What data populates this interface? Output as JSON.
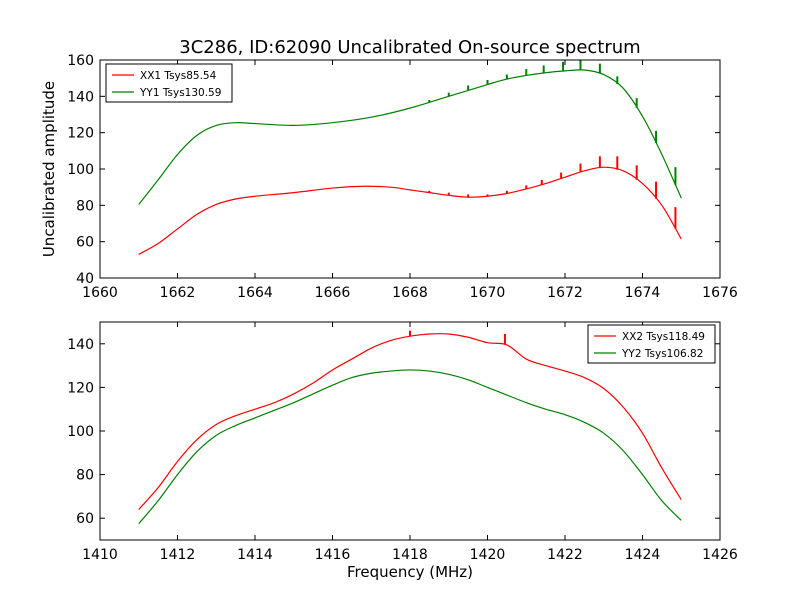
{
  "figure_title": "3C286, ID:62090 Uncalibrated On-source spectrum",
  "colors": {
    "red": "#ff0000",
    "green": "#008000"
  },
  "chart_data": [
    {
      "type": "line",
      "title": "3C286, ID:62090 Uncalibrated On-source spectrum",
      "xlabel": "",
      "ylabel": "Uncalibrated amplitude",
      "xlim": [
        1660,
        1676
      ],
      "ylim": [
        40,
        160
      ],
      "xticks": [
        1660,
        1662,
        1664,
        1666,
        1668,
        1670,
        1672,
        1674,
        1676
      ],
      "yticks": [
        40,
        60,
        80,
        100,
        120,
        140,
        160
      ],
      "grid": false,
      "legend_position": "top-left",
      "series": [
        {
          "name": "XX1 Tsys85.54",
          "color": "#ff0000",
          "x": [
            1661.0,
            1661.5,
            1662.0,
            1662.5,
            1663.0,
            1663.5,
            1664.0,
            1665.0,
            1666.0,
            1666.8,
            1667.5,
            1668.0,
            1668.5,
            1669.0,
            1669.5,
            1670.0,
            1670.5,
            1671.0,
            1671.5,
            1672.0,
            1672.5,
            1673.0,
            1673.5,
            1674.0,
            1674.5,
            1675.0
          ],
          "y": [
            53,
            59,
            67,
            75,
            80.5,
            83.5,
            85,
            87,
            89.5,
            90.5,
            90,
            88.5,
            87,
            85.5,
            84.5,
            85,
            86.5,
            89,
            92,
            95.5,
            99,
            101,
            99,
            92,
            80,
            61.5
          ],
          "spikes": [
            {
              "x": 1668.5,
              "y": 88
            },
            {
              "x": 1669.0,
              "y": 87
            },
            {
              "x": 1669.5,
              "y": 86
            },
            {
              "x": 1670.0,
              "y": 86
            },
            {
              "x": 1670.5,
              "y": 88
            },
            {
              "x": 1671.0,
              "y": 91
            },
            {
              "x": 1671.4,
              "y": 94
            },
            {
              "x": 1671.9,
              "y": 98
            },
            {
              "x": 1672.4,
              "y": 103
            },
            {
              "x": 1672.9,
              "y": 107
            },
            {
              "x": 1673.35,
              "y": 107
            },
            {
              "x": 1673.85,
              "y": 102
            },
            {
              "x": 1674.35,
              "y": 93
            },
            {
              "x": 1674.85,
              "y": 79
            }
          ]
        },
        {
          "name": "YY1 Tsys130.59",
          "color": "#008000",
          "x": [
            1661.0,
            1661.5,
            1662.0,
            1662.5,
            1663.0,
            1663.5,
            1664.0,
            1665.0,
            1666.0,
            1667.0,
            1668.0,
            1669.0,
            1670.0,
            1670.5,
            1671.0,
            1671.5,
            1672.0,
            1672.5,
            1673.0,
            1673.5,
            1674.0,
            1674.5,
            1675.0
          ],
          "y": [
            80.5,
            94,
            108,
            118.5,
            124,
            125.5,
            125,
            124,
            125.5,
            128.5,
            133.5,
            140,
            146.5,
            149.5,
            151.5,
            153,
            154,
            154.5,
            152,
            144.5,
            129,
            108,
            84
          ],
          "spikes": [
            {
              "x": 1668.5,
              "y": 138
            },
            {
              "x": 1669.0,
              "y": 142
            },
            {
              "x": 1669.5,
              "y": 146
            },
            {
              "x": 1670.0,
              "y": 149
            },
            {
              "x": 1670.5,
              "y": 152
            },
            {
              "x": 1671.0,
              "y": 155
            },
            {
              "x": 1671.45,
              "y": 157
            },
            {
              "x": 1671.95,
              "y": 159
            },
            {
              "x": 1672.4,
              "y": 160
            },
            {
              "x": 1672.9,
              "y": 158
            },
            {
              "x": 1673.35,
              "y": 151
            },
            {
              "x": 1673.85,
              "y": 139
            },
            {
              "x": 1674.35,
              "y": 121
            },
            {
              "x": 1674.85,
              "y": 101
            }
          ]
        }
      ]
    },
    {
      "type": "line",
      "title": "",
      "xlabel": "Frequency (MHz)",
      "ylabel": "",
      "xlim": [
        1410,
        1426
      ],
      "ylim": [
        50,
        150
      ],
      "xticks": [
        1410,
        1412,
        1414,
        1416,
        1418,
        1420,
        1422,
        1424,
        1426
      ],
      "yticks": [
        60,
        80,
        100,
        120,
        140
      ],
      "grid": false,
      "legend_position": "top-right",
      "series": [
        {
          "name": "XX2 Tsys118.49",
          "color": "#ff0000",
          "x": [
            1411.0,
            1411.5,
            1412.0,
            1412.5,
            1413.0,
            1413.5,
            1414.0,
            1414.5,
            1415.0,
            1415.5,
            1416.0,
            1416.5,
            1417.0,
            1417.5,
            1418.0,
            1418.5,
            1419.0,
            1419.5,
            1420.0,
            1420.5,
            1421.0,
            1421.5,
            1422.0,
            1422.5,
            1423.0,
            1423.5,
            1424.0,
            1424.5,
            1425.0
          ],
          "y": [
            64,
            74,
            86,
            96,
            103,
            107,
            110,
            113,
            117,
            122,
            128,
            133,
            138,
            141.5,
            143.5,
            144.5,
            144.5,
            143,
            140.5,
            139.5,
            133,
            130,
            127.5,
            124.5,
            119.5,
            111,
            99,
            83,
            68.5
          ],
          "spikes": [
            {
              "x": 1418.0,
              "y": 146
            },
            {
              "x": 1420.45,
              "y": 144.5
            }
          ]
        },
        {
          "name": "YY2 Tsys106.82",
          "color": "#008000",
          "x": [
            1411.0,
            1411.5,
            1412.0,
            1412.5,
            1413.0,
            1413.5,
            1414.0,
            1414.5,
            1415.0,
            1415.5,
            1416.0,
            1416.5,
            1417.0,
            1417.5,
            1418.0,
            1418.5,
            1419.0,
            1419.5,
            1420.0,
            1420.5,
            1421.0,
            1421.5,
            1422.0,
            1422.5,
            1423.0,
            1423.5,
            1424.0,
            1424.5,
            1425.0
          ],
          "y": [
            57.5,
            68,
            80,
            90.5,
            98,
            102.5,
            106,
            109.5,
            113,
            117,
            121,
            124.5,
            126.5,
            127.5,
            128,
            127.5,
            126,
            123.5,
            120,
            116.5,
            113,
            110,
            107.5,
            104,
            99,
            91,
            80,
            68,
            59
          ],
          "spikes": []
        }
      ]
    }
  ]
}
